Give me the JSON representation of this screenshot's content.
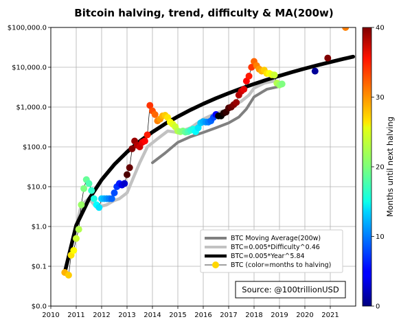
{
  "chart_data": {
    "type": "scatter",
    "title": "Bitcoin halving, trend, difficulty & MA(200w)",
    "xlabel": "",
    "ylabel": "",
    "x_axis": {
      "type": "linear",
      "range": [
        2010,
        2022
      ],
      "ticks": [
        2010,
        2011,
        2012,
        2013,
        2014,
        2015,
        2016,
        2017,
        2018,
        2019,
        2020,
        2021
      ],
      "tick_labels": [
        "2010",
        "2011",
        "2012",
        "2013",
        "2014",
        "2015",
        "2016",
        "2017",
        "2018",
        "2019",
        "2020",
        "2021"
      ]
    },
    "y_axis": {
      "type": "log",
      "range": [
        0.01,
        100000
      ],
      "ticks": [
        0.01,
        0.1,
        1,
        10,
        100,
        1000,
        10000,
        100000
      ],
      "tick_labels": [
        "$0.0",
        "$0.1",
        "$1.0",
        "$10.0",
        "$100.0",
        "$1,000.0",
        "$10,000.0",
        "$100,000.0"
      ]
    },
    "grid": true,
    "series": [
      {
        "name": "BTC Moving Average(200w)",
        "kind": "line",
        "color": "#808080",
        "points": [
          [
            2014.0,
            40
          ],
          [
            2014.5,
            70
          ],
          [
            2015.0,
            130
          ],
          [
            2015.5,
            180
          ],
          [
            2016.0,
            230
          ],
          [
            2016.5,
            300
          ],
          [
            2017.0,
            400
          ],
          [
            2017.4,
            560
          ],
          [
            2017.7,
            900
          ],
          [
            2018.0,
            1800
          ],
          [
            2018.5,
            2800
          ],
          [
            2019.0,
            3300
          ],
          [
            2019.1,
            3400
          ]
        ]
      },
      {
        "name": "BTC=0.005*Difficulty^0.46",
        "kind": "line",
        "color": "#c2c2c2",
        "points": [
          [
            2011.0,
            1
          ],
          [
            2011.2,
            3.5
          ],
          [
            2011.5,
            5
          ],
          [
            2011.8,
            3
          ],
          [
            2012.2,
            3.5
          ],
          [
            2012.5,
            4.5
          ],
          [
            2012.7,
            5
          ],
          [
            2013.0,
            7
          ],
          [
            2013.3,
            20
          ],
          [
            2013.5,
            40
          ],
          [
            2013.8,
            100
          ],
          [
            2014.2,
            160
          ],
          [
            2014.6,
            250
          ],
          [
            2015.0,
            230
          ],
          [
            2015.5,
            300
          ],
          [
            2016.0,
            500
          ],
          [
            2016.5,
            700
          ],
          [
            2017.0,
            900
          ],
          [
            2017.5,
            1400
          ],
          [
            2017.8,
            2000
          ],
          [
            2018.0,
            3000
          ],
          [
            2018.4,
            4000
          ],
          [
            2018.8,
            4500
          ],
          [
            2019.0,
            4200
          ]
        ]
      },
      {
        "name": "BTC=0.005*Year^5.84",
        "kind": "line",
        "color": "#000000",
        "points": [
          [
            2010.55,
            0.07
          ],
          [
            2011.0,
            1.07
          ],
          [
            2011.5,
            4.86
          ],
          [
            2012.0,
            14.9
          ],
          [
            2012.5,
            36.0
          ],
          [
            2013.0,
            74.5
          ],
          [
            2013.5,
            138
          ],
          [
            2014.0,
            236
          ],
          [
            2014.5,
            379
          ],
          [
            2015.0,
            579
          ],
          [
            2015.5,
            849
          ],
          [
            2016.0,
            1204
          ],
          [
            2016.5,
            1660
          ],
          [
            2017.0,
            2234
          ],
          [
            2017.5,
            2945
          ],
          [
            2018.0,
            3812
          ],
          [
            2018.5,
            4857
          ],
          [
            2019.0,
            6100
          ],
          [
            2019.5,
            7566
          ],
          [
            2020.0,
            9279
          ],
          [
            2020.5,
            11260
          ],
          [
            2021.0,
            13540
          ],
          [
            2021.5,
            16140
          ],
          [
            2021.9,
            18450
          ]
        ]
      },
      {
        "name": "BTC (color=months to halving)",
        "kind": "scatter",
        "color_meaning": "months until next halving",
        "points": [
          {
            "x": 2010.55,
            "y": 0.07,
            "m": 28
          },
          {
            "x": 2010.7,
            "y": 0.06,
            "m": 27
          },
          {
            "x": 2010.8,
            "y": 0.19,
            "m": 26
          },
          {
            "x": 2010.9,
            "y": 0.25,
            "m": 25
          },
          {
            "x": 2011.0,
            "y": 0.5,
            "m": 23
          },
          {
            "x": 2011.1,
            "y": 0.85,
            "m": 22
          },
          {
            "x": 2011.2,
            "y": 3.5,
            "m": 21
          },
          {
            "x": 2011.3,
            "y": 9,
            "m": 20
          },
          {
            "x": 2011.4,
            "y": 15,
            "m": 19
          },
          {
            "x": 2011.5,
            "y": 12,
            "m": 18
          },
          {
            "x": 2011.6,
            "y": 8,
            "m": 17
          },
          {
            "x": 2011.7,
            "y": 5,
            "m": 16
          },
          {
            "x": 2011.8,
            "y": 3.5,
            "m": 15
          },
          {
            "x": 2011.9,
            "y": 3,
            "m": 14
          },
          {
            "x": 2012.0,
            "y": 5,
            "m": 13
          },
          {
            "x": 2012.1,
            "y": 5,
            "m": 12
          },
          {
            "x": 2012.2,
            "y": 5,
            "m": 11
          },
          {
            "x": 2012.3,
            "y": 5,
            "m": 10
          },
          {
            "x": 2012.4,
            "y": 5,
            "m": 9
          },
          {
            "x": 2012.5,
            "y": 7,
            "m": 8
          },
          {
            "x": 2012.6,
            "y": 10,
            "m": 7
          },
          {
            "x": 2012.7,
            "y": 12,
            "m": 6
          },
          {
            "x": 2012.8,
            "y": 11,
            "m": 4
          },
          {
            "x": 2012.9,
            "y": 12,
            "m": 3
          },
          {
            "x": 2013.0,
            "y": 20,
            "m": 42
          },
          {
            "x": 2013.1,
            "y": 30,
            "m": 41
          },
          {
            "x": 2013.2,
            "y": 90,
            "m": 40
          },
          {
            "x": 2013.3,
            "y": 140,
            "m": 39
          },
          {
            "x": 2013.4,
            "y": 110,
            "m": 38
          },
          {
            "x": 2013.5,
            "y": 100,
            "m": 37
          },
          {
            "x": 2013.6,
            "y": 130,
            "m": 36
          },
          {
            "x": 2013.7,
            "y": 140,
            "m": 35
          },
          {
            "x": 2013.8,
            "y": 200,
            "m": 34
          },
          {
            "x": 2013.9,
            "y": 1100,
            "m": 33
          },
          {
            "x": 2014.0,
            "y": 800,
            "m": 32
          },
          {
            "x": 2014.1,
            "y": 650,
            "m": 31
          },
          {
            "x": 2014.2,
            "y": 450,
            "m": 30
          },
          {
            "x": 2014.3,
            "y": 500,
            "m": 29
          },
          {
            "x": 2014.4,
            "y": 600,
            "m": 28
          },
          {
            "x": 2014.5,
            "y": 620,
            "m": 27
          },
          {
            "x": 2014.6,
            "y": 550,
            "m": 26
          },
          {
            "x": 2014.7,
            "y": 420,
            "m": 25
          },
          {
            "x": 2014.8,
            "y": 370,
            "m": 24
          },
          {
            "x": 2014.9,
            "y": 320,
            "m": 23
          },
          {
            "x": 2015.0,
            "y": 250,
            "m": 22
          },
          {
            "x": 2015.1,
            "y": 240,
            "m": 21
          },
          {
            "x": 2015.2,
            "y": 250,
            "m": 20
          },
          {
            "x": 2015.3,
            "y": 235,
            "m": 19
          },
          {
            "x": 2015.4,
            "y": 240,
            "m": 18
          },
          {
            "x": 2015.5,
            "y": 260,
            "m": 17
          },
          {
            "x": 2015.6,
            "y": 280,
            "m": 16
          },
          {
            "x": 2015.7,
            "y": 240,
            "m": 15
          },
          {
            "x": 2015.8,
            "y": 300,
            "m": 14
          },
          {
            "x": 2015.9,
            "y": 400,
            "m": 13
          },
          {
            "x": 2016.0,
            "y": 430,
            "m": 12
          },
          {
            "x": 2016.1,
            "y": 420,
            "m": 11
          },
          {
            "x": 2016.2,
            "y": 420,
            "m": 10
          },
          {
            "x": 2016.3,
            "y": 450,
            "m": 9
          },
          {
            "x": 2016.4,
            "y": 550,
            "m": 8
          },
          {
            "x": 2016.5,
            "y": 650,
            "m": 5
          },
          {
            "x": 2016.6,
            "y": 600,
            "m": 46
          },
          {
            "x": 2016.7,
            "y": 600,
            "m": 45
          },
          {
            "x": 2016.8,
            "y": 700,
            "m": 44
          },
          {
            "x": 2016.9,
            "y": 750,
            "m": 43
          },
          {
            "x": 2017.0,
            "y": 950,
            "m": 42
          },
          {
            "x": 2017.1,
            "y": 1000,
            "m": 41
          },
          {
            "x": 2017.2,
            "y": 1150,
            "m": 40
          },
          {
            "x": 2017.3,
            "y": 1300,
            "m": 39
          },
          {
            "x": 2017.4,
            "y": 2000,
            "m": 38
          },
          {
            "x": 2017.5,
            "y": 2500,
            "m": 37
          },
          {
            "x": 2017.6,
            "y": 2800,
            "m": 36
          },
          {
            "x": 2017.7,
            "y": 4500,
            "m": 35
          },
          {
            "x": 2017.8,
            "y": 6000,
            "m": 34
          },
          {
            "x": 2017.9,
            "y": 10000,
            "m": 33
          },
          {
            "x": 2018.0,
            "y": 14000,
            "m": 31
          },
          {
            "x": 2018.1,
            "y": 11000,
            "m": 30
          },
          {
            "x": 2018.2,
            "y": 9000,
            "m": 29
          },
          {
            "x": 2018.3,
            "y": 8000,
            "m": 28
          },
          {
            "x": 2018.4,
            "y": 8500,
            "m": 27
          },
          {
            "x": 2018.5,
            "y": 7000,
            "m": 26
          },
          {
            "x": 2018.6,
            "y": 7000,
            "m": 25
          },
          {
            "x": 2018.7,
            "y": 6500,
            "m": 24
          },
          {
            "x": 2018.8,
            "y": 6400,
            "m": 23
          },
          {
            "x": 2018.9,
            "y": 4000,
            "m": 22
          },
          {
            "x": 2019.0,
            "y": 3600,
            "m": 21
          },
          {
            "x": 2019.1,
            "y": 3800,
            "m": 20
          },
          {
            "x": 2020.4,
            "y": 8000,
            "m": 1
          },
          {
            "x": 2020.9,
            "y": 17000,
            "m": 40
          },
          {
            "x": 2021.6,
            "y": 100000,
            "m": 30
          }
        ]
      }
    ],
    "colorbar": {
      "label": "Months until next halving",
      "range": [
        0,
        40
      ],
      "ticks": [
        0,
        10,
        20,
        30,
        40
      ],
      "colormap": "jet"
    },
    "legend": {
      "position": "lower-right",
      "entries": [
        "BTC Moving Average(200w)",
        "BTC=0.005*Difficulty^0.46",
        "BTC=0.005*Year^5.84",
        "BTC (color=months to halving)"
      ]
    },
    "source_note": "Source: @100trillionUSD"
  }
}
